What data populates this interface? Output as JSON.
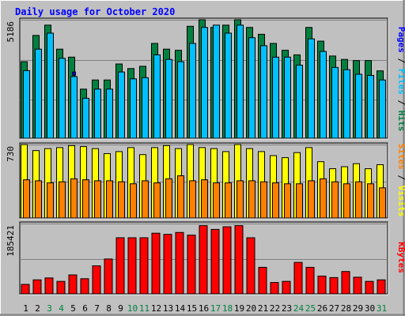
{
  "title": "Daily usage for October 2020",
  "colors": {
    "title": "#0000ff",
    "background": "#c0c0c0",
    "hits": "#008040",
    "files": "#00c0ff",
    "pages": "#0000ff",
    "visits": "#ffff00",
    "sites": "#ff8000",
    "kbytes": "#ff0000",
    "weekend_day": "#008040",
    "weekday": "#000000"
  },
  "chart_data": [
    {
      "type": "bar",
      "panel": "hits-files-pages",
      "y_max_label": "5186",
      "ylim": [
        0,
        5186
      ],
      "legend": [
        "Pages",
        "Files",
        "Hits"
      ],
      "legend_separator": " / ",
      "categories": [
        "1",
        "2",
        "3",
        "4",
        "5",
        "6",
        "7",
        "8",
        "9",
        "10",
        "11",
        "12",
        "13",
        "14",
        "15",
        "16",
        "17",
        "18",
        "19",
        "20",
        "21",
        "22",
        "23",
        "24",
        "25",
        "26",
        "27",
        "28",
        "29",
        "30",
        "31"
      ],
      "series": [
        {
          "name": "Hits",
          "values": [
            3350,
            4500,
            4950,
            3900,
            3550,
            2150,
            2550,
            2550,
            3250,
            3050,
            3150,
            4150,
            3900,
            3850,
            4900,
            5186,
            4850,
            4950,
            5186,
            4850,
            4550,
            4150,
            3850,
            3650,
            4850,
            4250,
            3600,
            3450,
            3400,
            3400,
            2950
          ]
        },
        {
          "name": "Files",
          "values": [
            2960,
            3900,
            4600,
            3500,
            2700,
            1750,
            2150,
            2150,
            2900,
            2600,
            2650,
            3650,
            3450,
            3350,
            4150,
            4850,
            4950,
            4600,
            4950,
            4400,
            4050,
            3550,
            3550,
            3200,
            4350,
            3800,
            3100,
            3000,
            2800,
            2750,
            2550
          ]
        },
        {
          "name": "Pages",
          "values": [
            0,
            0,
            0,
            0,
            2900,
            0,
            0,
            0,
            0,
            0,
            0,
            0,
            0,
            0,
            0,
            0,
            0,
            0,
            0,
            0,
            0,
            0,
            0,
            0,
            0,
            0,
            0,
            0,
            0,
            0,
            0
          ]
        }
      ]
    },
    {
      "type": "bar",
      "panel": "visits-sites",
      "y_max_label": "730",
      "ylim": [
        0,
        730
      ],
      "legend": [
        "Sites",
        "Visits"
      ],
      "legend_separator": " / ",
      "categories": [
        "1",
        "2",
        "3",
        "4",
        "5",
        "6",
        "7",
        "8",
        "9",
        "10",
        "11",
        "12",
        "13",
        "14",
        "15",
        "16",
        "17",
        "18",
        "19",
        "20",
        "21",
        "22",
        "23",
        "24",
        "25",
        "26",
        "27",
        "28",
        "29",
        "30",
        "31"
      ],
      "series": [
        {
          "name": "Visits",
          "values": [
            730,
            670,
            690,
            700,
            720,
            710,
            690,
            640,
            660,
            700,
            630,
            700,
            720,
            690,
            730,
            700,
            690,
            660,
            730,
            690,
            660,
            620,
            600,
            650,
            700,
            560,
            490,
            510,
            540,
            490,
            530
          ]
        },
        {
          "name": "Sites",
          "values": [
            380,
            370,
            350,
            360,
            390,
            380,
            370,
            370,
            360,
            340,
            370,
            350,
            390,
            420,
            370,
            380,
            350,
            350,
            370,
            370,
            360,
            350,
            340,
            340,
            370,
            390,
            360,
            340,
            360,
            340,
            300
          ]
        }
      ]
    },
    {
      "type": "bar",
      "panel": "kbytes",
      "y_max_label": "185421",
      "ylim": [
        0,
        185421
      ],
      "legend": [
        "KBytes"
      ],
      "categories": [
        "1",
        "2",
        "3",
        "4",
        "5",
        "6",
        "7",
        "8",
        "9",
        "10",
        "11",
        "12",
        "13",
        "14",
        "15",
        "16",
        "17",
        "18",
        "19",
        "20",
        "21",
        "22",
        "23",
        "24",
        "25",
        "26",
        "27",
        "28",
        "29",
        "30",
        "31"
      ],
      "series": [
        {
          "name": "KBytes",
          "values": [
            25000,
            37000,
            42000,
            33000,
            50000,
            40000,
            74000,
            92000,
            148000,
            148000,
            148000,
            160000,
            157000,
            162000,
            155000,
            180000,
            170000,
            177000,
            180000,
            148000,
            70000,
            30000,
            33000,
            83000,
            70000,
            47000,
            43000,
            59000,
            44000,
            33000,
            37000
          ]
        }
      ]
    }
  ]
}
